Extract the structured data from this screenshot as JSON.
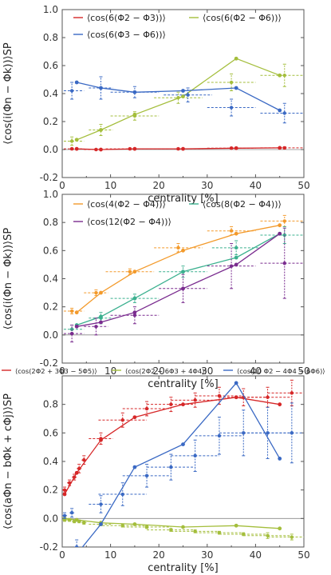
{
  "chart_data": [
    {
      "type": "line",
      "ylabel": "⟨cos(i(Φn − Φk))⟩SP",
      "xlabel": "centrality [%]",
      "xlim": [
        0,
        50
      ],
      "ylim": [
        -0.2,
        1.0
      ],
      "x_ticks": [
        "0",
        "10",
        "20",
        "30",
        "40",
        "50"
      ],
      "y_ticks": [
        "-0.2",
        "0.0",
        "0.2",
        "0.4",
        "0.6",
        "0.8",
        "1.0"
      ],
      "legend_position": "top-left",
      "series": [
        {
          "name": "⟨cos(6(Φ2 − Φ3))⟩",
          "color": "#d62728",
          "line": {
            "x": [
              3,
              8,
              15,
              25,
              36,
              45
            ],
            "y": [
              0.005,
              0.0,
              0.005,
              0.005,
              0.01,
              0.012
            ]
          },
          "points": {
            "x": [
              2,
              7,
              14,
              24,
              35,
              46
            ],
            "y": [
              0.005,
              0.0,
              0.005,
              0.005,
              0.01,
              0.012
            ],
            "err": [
              0.006,
              0.006,
              0.006,
              0.006,
              0.006,
              0.008
            ]
          }
        },
        {
          "name": "⟨cos(6(Φ2 − Φ6))⟩",
          "color": "#a4be3c",
          "line": {
            "x": [
              3,
              8,
              15,
              25,
              36,
              45
            ],
            "y": [
              0.07,
              0.14,
              0.25,
              0.38,
              0.65,
              0.53
            ]
          },
          "points": {
            "x": [
              2,
              8,
              15,
              24,
              35,
              46
            ],
            "y": [
              0.06,
              0.14,
              0.24,
              0.37,
              0.48,
              0.53
            ],
            "err": [
              0.03,
              0.04,
              0.03,
              0.04,
              0.06,
              0.08
            ]
          }
        },
        {
          "name": "⟨cos(6(Φ3 − Φ6))⟩",
          "color": "#3a69c4",
          "line": {
            "x": [
              3,
              8,
              15,
              25,
              36,
              45
            ],
            "y": [
              0.48,
              0.44,
              0.41,
              0.42,
              0.44,
              0.28
            ]
          },
          "points": {
            "x": [
              2,
              8,
              15,
              26,
              35,
              46
            ],
            "y": [
              0.42,
              0.44,
              0.41,
              0.39,
              0.3,
              0.26
            ],
            "err": [
              0.06,
              0.08,
              0.04,
              0.05,
              0.06,
              0.07
            ]
          }
        }
      ]
    },
    {
      "type": "line",
      "ylabel": "⟨cos(i(Φn − Φk))⟩SP",
      "xlabel": "centrality [%]",
      "xlim": [
        0,
        50
      ],
      "ylim": [
        -0.2,
        1.0
      ],
      "x_ticks": [
        "0",
        "10",
        "20",
        "30",
        "40",
        "50"
      ],
      "y_ticks": [
        "-0.2",
        "0.0",
        "0.2",
        "0.4",
        "0.6",
        "0.8",
        "1.0"
      ],
      "legend_position": "top-left",
      "series": [
        {
          "name": "⟨cos(4(Φ2 − Φ4))⟩",
          "color": "#f39a2b",
          "line": {
            "x": [
              3,
              8,
              15,
              25,
              36,
              45
            ],
            "y": [
              0.16,
              0.3,
              0.45,
              0.6,
              0.72,
              0.78
            ]
          },
          "points": {
            "x": [
              2,
              7,
              14,
              24,
              35,
              46
            ],
            "y": [
              0.17,
              0.3,
              0.45,
              0.62,
              0.74,
              0.81
            ],
            "err": [
              0.02,
              0.02,
              0.02,
              0.03,
              0.03,
              0.04
            ]
          }
        },
        {
          "name": "⟨cos(8(Φ2 − Φ4))⟩",
          "color": "#3bb08f",
          "line": {
            "x": [
              3,
              8,
              15,
              25,
              36,
              45
            ],
            "y": [
              0.07,
              0.13,
              0.26,
              0.45,
              0.55,
              0.72
            ]
          },
          "points": {
            "x": [
              2,
              8,
              15,
              25,
              36,
              46
            ],
            "y": [
              0.04,
              0.12,
              0.26,
              0.45,
              0.62,
              0.71
            ],
            "err": [
              0.03,
              0.04,
              0.03,
              0.04,
              0.05,
              0.06
            ]
          }
        },
        {
          "name": "⟨cos(12(Φ2 − Φ4))⟩",
          "color": "#7a2c8f",
          "line": {
            "x": [
              3,
              8,
              15,
              25,
              36,
              45
            ],
            "y": [
              0.06,
              0.09,
              0.16,
              0.33,
              0.5,
              0.72
            ]
          },
          "points": {
            "x": [
              2,
              7,
              15,
              25,
              35,
              46
            ],
            "y": [
              0.01,
              0.06,
              0.14,
              0.33,
              0.49,
              0.51
            ],
            "err": [
              0.06,
              0.06,
              0.06,
              0.1,
              0.16,
              0.25
            ]
          }
        }
      ]
    },
    {
      "type": "line",
      "ylabel": "⟨cos(aΦn − bΦk + cΦj)⟩SP",
      "xlabel": "centrality [%]",
      "xlim": [
        0,
        50
      ],
      "ylim": [
        -0.2,
        1.0
      ],
      "x_ticks": [
        "0",
        "10",
        "20",
        "30",
        "40",
        "50"
      ],
      "y_ticks": [
        "-0.2",
        "0.0",
        "0.2",
        "0.4",
        "0.6",
        "0.8"
      ],
      "legend_position": "top",
      "series": [
        {
          "name": "⟨cos(2Φ2 + 3Φ3 − 5Φ5)⟩",
          "color": "#d62728",
          "line": {
            "x": [
              0.5,
              3,
              8,
              15,
              25,
              36,
              45
            ],
            "y": [
              0.17,
              0.32,
              0.55,
              0.71,
              0.8,
              0.85,
              0.8
            ]
          },
          "points": {
            "x": [
              0.5,
              1.5,
              2.5,
              3.5,
              4.5,
              8,
              12.5,
              17.5,
              22.5,
              27.5,
              32.5,
              37.5,
              42.5,
              47.5
            ],
            "y": [
              0.2,
              0.25,
              0.29,
              0.35,
              0.41,
              0.56,
              0.69,
              0.77,
              0.8,
              0.83,
              0.86,
              0.85,
              0.85,
              0.88
            ],
            "err": [
              0.02,
              0.02,
              0.02,
              0.03,
              0.03,
              0.04,
              0.05,
              0.05,
              0.05,
              0.05,
              0.06,
              0.06,
              0.07,
              0.09
            ]
          }
        },
        {
          "name": "⟨cos(2Φ2 − 6Φ3 + 4Φ4)⟩",
          "color": "#a4be3c",
          "line": {
            "x": [
              0.5,
              3,
              8,
              15,
              25,
              36,
              45
            ],
            "y": [
              0.0,
              -0.01,
              -0.03,
              -0.04,
              -0.06,
              -0.05,
              -0.07
            ]
          },
          "points": {
            "x": [
              0.5,
              1.5,
              2.5,
              3.5,
              4.5,
              8,
              12.5,
              17.5,
              22.5,
              27.5,
              32.5,
              37.5,
              42.5,
              47.5
            ],
            "y": [
              -0.01,
              -0.01,
              -0.02,
              -0.02,
              -0.03,
              -0.04,
              -0.05,
              -0.06,
              -0.08,
              -0.09,
              -0.1,
              -0.11,
              -0.12,
              -0.13
            ],
            "err": [
              0.01,
              0.01,
              0.01,
              0.01,
              0.01,
              0.01,
              0.01,
              0.01,
              0.01,
              0.01,
              0.01,
              0.01,
              0.02,
              0.02
            ]
          }
        },
        {
          "name": "⟨cos(10 Φ2 − 4Φ4 − 6Φ6)⟩",
          "color": "#3a69c4",
          "line": {
            "x": [
              3,
              8,
              15,
              25,
              36,
              45
            ],
            "y": [
              -0.25,
              -0.04,
              0.36,
              0.52,
              0.95,
              0.42
            ]
          },
          "points": {
            "x": [
              0.5,
              2,
              3,
              8,
              12.5,
              17.5,
              22.5,
              27.5,
              32.5,
              37.5,
              42.5,
              47.5
            ],
            "y": [
              0.02,
              0.04,
              -0.2,
              0.1,
              0.17,
              0.3,
              0.36,
              0.44,
              0.58,
              0.6,
              0.6,
              0.6
            ],
            "err": [
              0.02,
              0.03,
              0.05,
              0.06,
              0.08,
              0.08,
              0.09,
              0.11,
              0.13,
              0.16,
              0.18,
              0.21
            ]
          }
        }
      ]
    }
  ]
}
